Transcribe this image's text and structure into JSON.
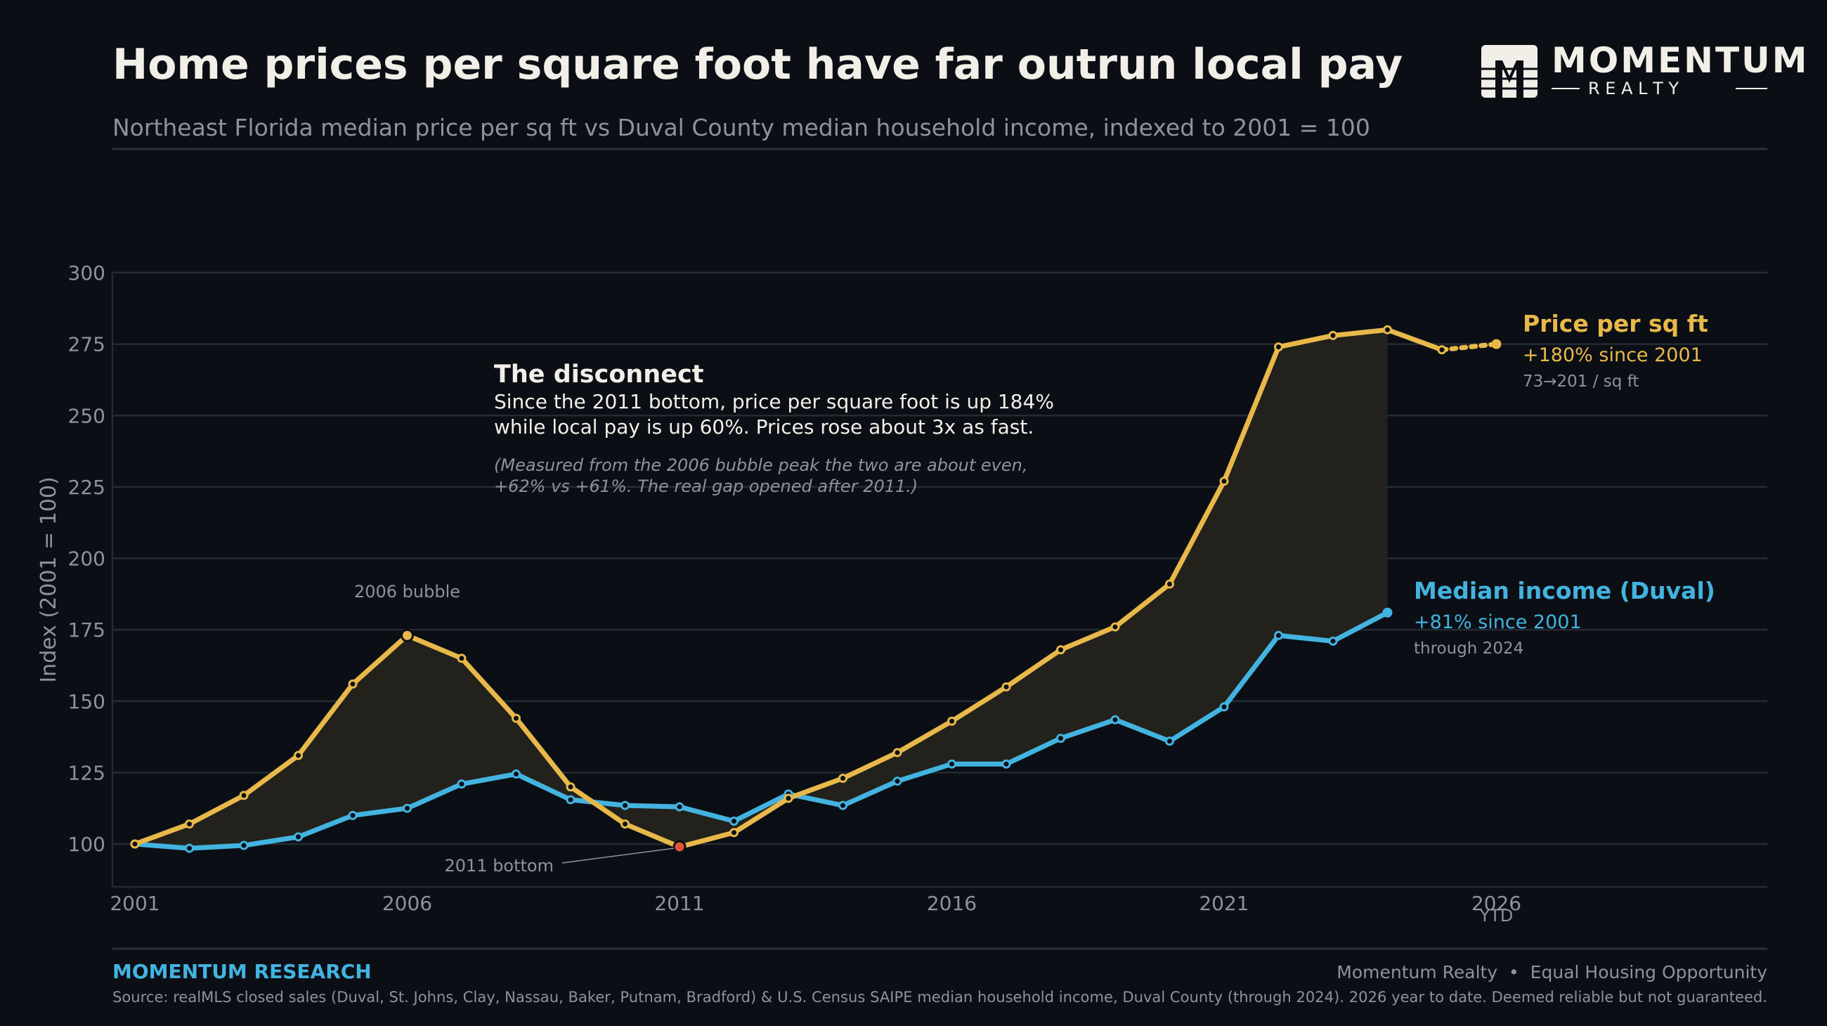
{
  "header": {
    "title": "Home prices per square foot have far outrun local pay",
    "subtitle": "Northeast Florida median price per sq ft vs Duval County median household income, indexed to 2001 = 100"
  },
  "brand": {
    "letter": "M",
    "name": "MOMENTUM",
    "tagline": "R E A L T Y"
  },
  "annotation": {
    "heading": "The disconnect",
    "line1": "Since the 2011 bottom, price per square foot is up 184%",
    "line2": "while local pay is up 60%. Prices rose about 3x as fast.",
    "note1": "(Measured from the 2006 bubble peak the two are about even,",
    "note2": "+62% vs +61%. The real gap opened after 2011.)"
  },
  "chart_data": {
    "type": "line",
    "ylabel": "Index (2001 = 100)",
    "xlabel": "",
    "ylim": [
      85,
      300
    ],
    "xlim": [
      2001,
      2031
    ],
    "y_ticks": [
      100,
      125,
      150,
      175,
      200,
      225,
      250,
      275,
      300
    ],
    "x_ticks": [
      2001,
      2006,
      2011,
      2016,
      2021,
      2026
    ],
    "x_tick_note": "YTD",
    "grid": true,
    "series": [
      {
        "name": "Price per sq ft",
        "color": "#e8b84a",
        "x": [
          2001,
          2002,
          2003,
          2004,
          2005,
          2006,
          2007,
          2008,
          2009,
          2010,
          2011,
          2012,
          2013,
          2014,
          2015,
          2016,
          2017,
          2018,
          2019,
          2020,
          2021,
          2022,
          2023,
          2024,
          2025
        ],
        "values": [
          100,
          107,
          117,
          131,
          156,
          173,
          165,
          144,
          120,
          107,
          99,
          104,
          116,
          123,
          132,
          143,
          155,
          168,
          176,
          191,
          227,
          274,
          278,
          280,
          273
        ],
        "ytd_point": {
          "x": 2026,
          "value": 275
        },
        "label_change": "+180% since 2001",
        "label_detail": "73→201 / sq ft"
      },
      {
        "name": "Median income (Duval)",
        "color": "#43b3e0",
        "x": [
          2001,
          2002,
          2003,
          2004,
          2005,
          2006,
          2007,
          2008,
          2009,
          2010,
          2011,
          2012,
          2013,
          2014,
          2015,
          2016,
          2017,
          2018,
          2019,
          2020,
          2021,
          2022,
          2023,
          2024
        ],
        "values": [
          100,
          98.5,
          99.5,
          102.5,
          110,
          112.5,
          121,
          124.5,
          115.5,
          113.5,
          113,
          108,
          117.5,
          113.5,
          122,
          128,
          128,
          137,
          143.5,
          136,
          148,
          173,
          171,
          181
        ],
        "label_change": "+81% since 2001",
        "label_detail": "through 2024"
      }
    ],
    "annotations": [
      {
        "text": "2006 bubble",
        "x": 2006,
        "value": 173
      },
      {
        "text": "2011 bottom",
        "x": 2011,
        "value": 99
      }
    ]
  },
  "footer": {
    "brand": "MOMENTUM RESEARCH",
    "right": "Momentum Realty  •  Equal Housing Opportunity",
    "source": "Source: realMLS closed sales (Duval, St. Johns, Clay, Nassau, Baker, Putnam, Bradford) & U.S. Census SAIPE median household income, Duval County (through 2024). 2026 year to date. Deemed reliable but not guaranteed."
  },
  "colors": {
    "background": "#0b0f15",
    "price": "#e8b84a",
    "income": "#43b3e0",
    "bottom_marker": "#e0553a",
    "gap_fill": "#25241c",
    "grid": "#252b33",
    "muted_text": "#8c939c",
    "title_text": "#f2efe8"
  }
}
